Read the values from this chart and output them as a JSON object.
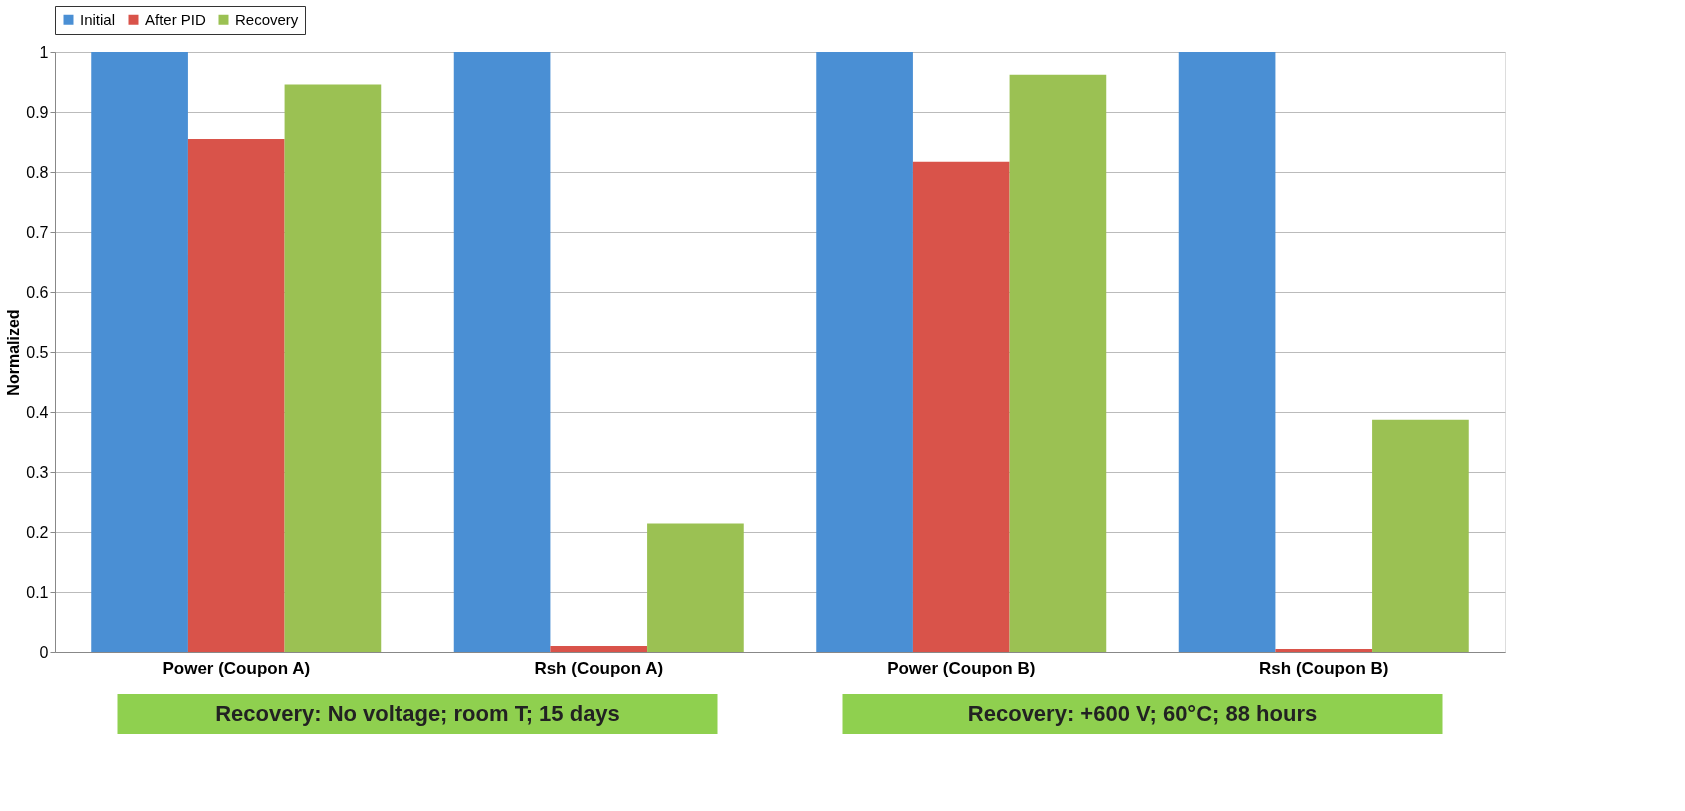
{
  "chart_data": {
    "type": "bar",
    "ylabel": "Normalized",
    "categories": [
      "Power (Coupon A)",
      "Rsh (Coupon A)",
      "Power (Coupon B)",
      "Rsh (Coupon B)"
    ],
    "series": [
      {
        "name": "Initial",
        "color": "#4a8fd4",
        "values": [
          1,
          1,
          1,
          1
        ]
      },
      {
        "name": "After PID",
        "color": "#d9534a",
        "values": [
          0.855,
          0.01,
          0.817,
          0.005
        ]
      },
      {
        "name": "Recovery",
        "color": "#9bc153",
        "values": [
          0.946,
          0.214,
          0.962,
          0.387
        ]
      }
    ],
    "ylim": [
      0,
      1
    ],
    "yticks": [
      0,
      0.1,
      0.2,
      0.3,
      0.4,
      0.5,
      0.6,
      0.7,
      0.8,
      0.9,
      1
    ],
    "grid": "y",
    "legend": "top",
    "annotations": [
      "Recovery: No voltage; room T; 15 days",
      "Recovery: +600 V; 60°C; 88 hours"
    ]
  }
}
